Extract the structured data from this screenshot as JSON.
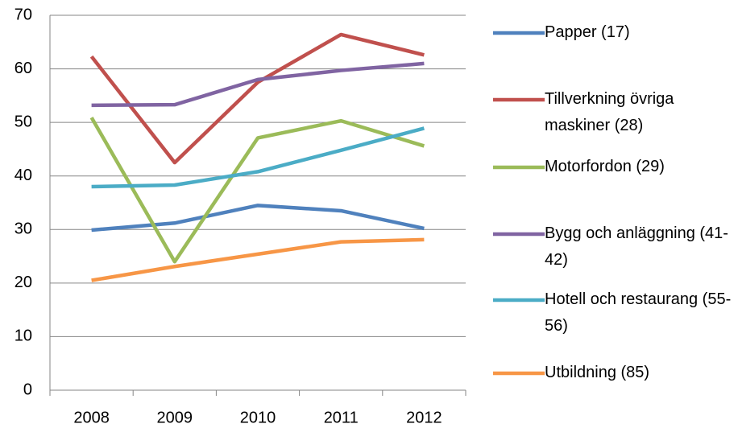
{
  "chart_data": {
    "type": "line",
    "categories": [
      "2008",
      "2009",
      "2010",
      "2011",
      "2012"
    ],
    "series": [
      {
        "name": "Papper (17)",
        "color": "#4F81BD",
        "values": [
          29.9,
          31.2,
          34.5,
          33.5,
          30.2
        ]
      },
      {
        "name": "Tillverkning övriga maskiner (28)",
        "color": "#C0504D",
        "values": [
          62.3,
          42.5,
          57.5,
          66.4,
          62.6
        ]
      },
      {
        "name": "Motorfordon (29)",
        "color": "#9BBB59",
        "values": [
          50.9,
          24.0,
          47.1,
          50.3,
          45.6
        ]
      },
      {
        "name": "Bygg och anläggning (41-42)",
        "color": "#8064A2",
        "values": [
          53.2,
          53.3,
          58.0,
          59.7,
          61.0
        ]
      },
      {
        "name": "Hotell och restaurang (55-56)",
        "color": "#4BACC6",
        "values": [
          38.0,
          38.3,
          40.8,
          44.8,
          48.9
        ]
      },
      {
        "name": "Utbildning (85)",
        "color": "#F79646",
        "values": [
          20.5,
          23.1,
          25.4,
          27.7,
          28.1
        ]
      }
    ],
    "ylim": [
      0,
      70
    ],
    "yticks": [
      0,
      10,
      20,
      30,
      40,
      50,
      60,
      70
    ],
    "grid": true,
    "legend": "right"
  }
}
